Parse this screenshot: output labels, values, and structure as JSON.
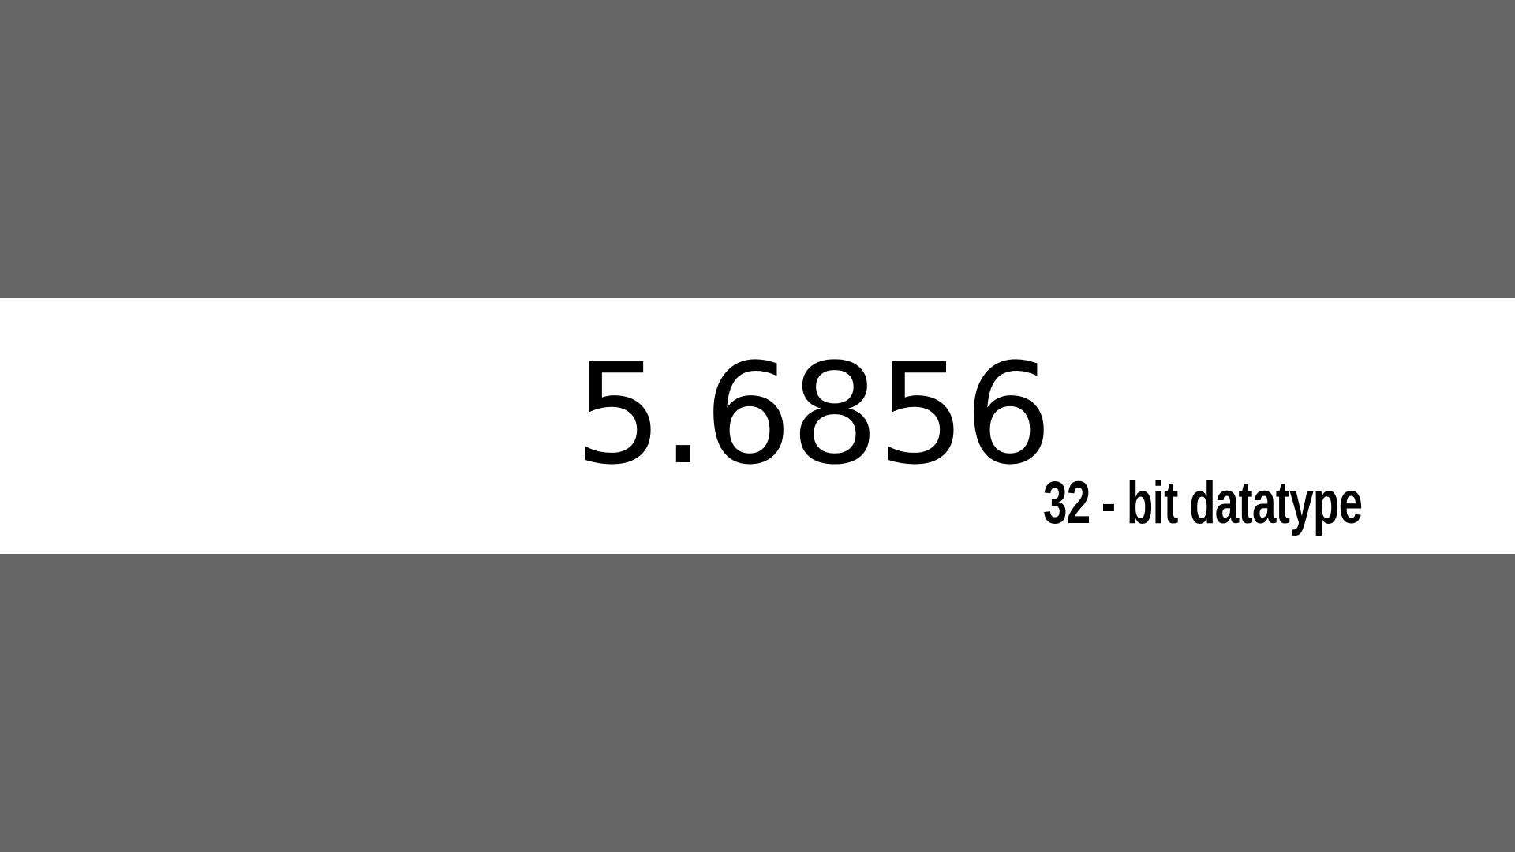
{
  "slide": {
    "value": "5.6856",
    "caption": "32 - bit datatype"
  },
  "colors": {
    "background_bands": "#666666",
    "center_band": "#ffffff",
    "text": "#000000"
  }
}
